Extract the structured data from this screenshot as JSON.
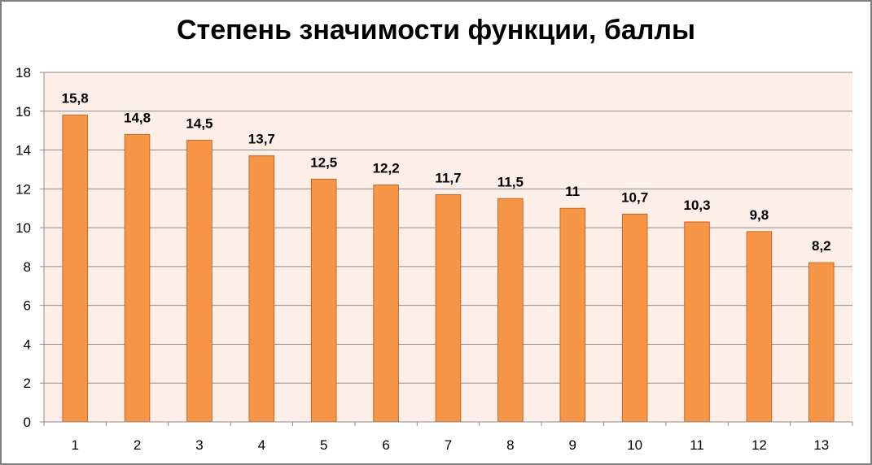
{
  "chart_data": {
    "type": "bar",
    "title": "Степень значимости функции, баллы",
    "xlabel": "",
    "ylabel": "",
    "categories": [
      "1",
      "2",
      "3",
      "4",
      "5",
      "6",
      "7",
      "8",
      "9",
      "10",
      "11",
      "12",
      "13"
    ],
    "values": [
      15.8,
      14.8,
      14.5,
      13.7,
      12.5,
      12.2,
      11.7,
      11.5,
      11,
      10.7,
      10.3,
      9.8,
      8.2
    ],
    "data_labels": [
      "15,8",
      "14,8",
      "14,5",
      "13,7",
      "12,5",
      "12,2",
      "11,7",
      "11,5",
      "11",
      "10,7",
      "10,3",
      "9,8",
      "8,2"
    ],
    "yticks": [
      0,
      2,
      4,
      6,
      8,
      10,
      12,
      14,
      16,
      18
    ],
    "ylim": [
      0,
      18
    ],
    "grid": true,
    "legend": "none",
    "colors": {
      "bar_fill": "#f79646",
      "bar_stroke": "#c0682a",
      "plot_background": "#fdeee8",
      "gridline": "#8c8c8c",
      "axis": "#8c8c8c"
    }
  }
}
